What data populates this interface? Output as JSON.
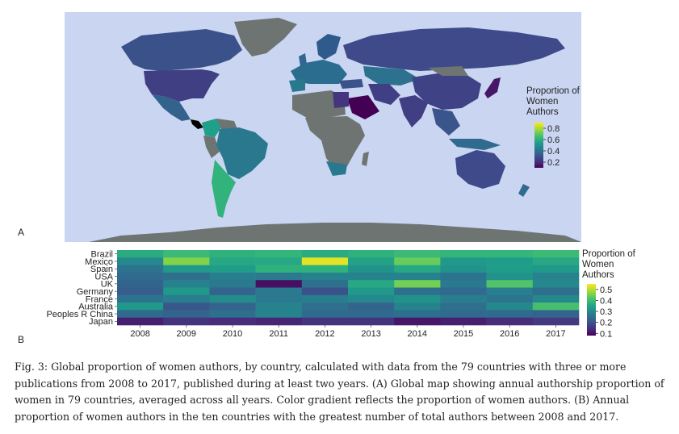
{
  "panel_a": {
    "label": "A",
    "legend": {
      "title_lines": [
        "Proportion of",
        "Women",
        "Authors"
      ],
      "ticks": [
        "0.8",
        "0.6",
        "0.4",
        "0.2"
      ],
      "tick_values": [
        0.8,
        0.6,
        0.4,
        0.2
      ],
      "range": [
        0.1,
        0.9
      ]
    },
    "colors": {
      "ocean": "#c9d5f1",
      "land_no_data": "#6e7472",
      "background": "#ffffff"
    },
    "countries": [
      {
        "name": "USA",
        "value": 0.25
      },
      {
        "name": "Canada",
        "value": 0.3
      },
      {
        "name": "Mexico",
        "value": 0.35
      },
      {
        "name": "Brazil",
        "value": 0.42
      },
      {
        "name": "Argentina",
        "value": 0.62
      },
      {
        "name": "Colombia",
        "value": 0.55
      },
      {
        "name": "Russia",
        "value": 0.28
      },
      {
        "name": "China",
        "value": 0.26
      },
      {
        "name": "India",
        "value": 0.25
      },
      {
        "name": "Australia",
        "value": 0.28
      },
      {
        "name": "Saudi Arabia",
        "value": 0.08
      },
      {
        "name": "Iran",
        "value": 0.25
      },
      {
        "name": "South Africa",
        "value": 0.42
      },
      {
        "name": "Egypt",
        "value": 0.22
      },
      {
        "name": "Japan",
        "value": 0.15
      }
    ]
  },
  "chart_data": {
    "type": "heatmap",
    "label": "B",
    "x": [
      "2008",
      "2009",
      "2010",
      "2011",
      "2012",
      "2013",
      "2014",
      "2015",
      "2016",
      "2017"
    ],
    "y": [
      "Brazil",
      "Mexico",
      "Spain",
      "USA",
      "UK",
      "Germany",
      "France",
      "Australia",
      "Peoples R China",
      "Japan"
    ],
    "values": [
      [
        0.37,
        0.4,
        0.38,
        0.39,
        0.37,
        0.38,
        0.4,
        0.39,
        0.39,
        0.4
      ],
      [
        0.3,
        0.46,
        0.36,
        0.36,
        0.53,
        0.35,
        0.44,
        0.33,
        0.34,
        0.36
      ],
      [
        0.26,
        0.33,
        0.34,
        0.38,
        0.38,
        0.32,
        0.36,
        0.32,
        0.34,
        0.33
      ],
      [
        0.24,
        0.25,
        0.28,
        0.27,
        0.29,
        0.29,
        0.29,
        0.26,
        0.32,
        0.29
      ],
      [
        0.23,
        0.29,
        0.27,
        0.1,
        0.25,
        0.36,
        0.45,
        0.27,
        0.42,
        0.3
      ],
      [
        0.22,
        0.33,
        0.23,
        0.27,
        0.2,
        0.33,
        0.25,
        0.24,
        0.28,
        0.25
      ],
      [
        0.26,
        0.28,
        0.31,
        0.27,
        0.28,
        0.3,
        0.32,
        0.28,
        0.26,
        0.3
      ],
      [
        0.33,
        0.21,
        0.23,
        0.29,
        0.25,
        0.23,
        0.29,
        0.25,
        0.3,
        0.41
      ],
      [
        0.24,
        0.23,
        0.25,
        0.29,
        0.24,
        0.24,
        0.25,
        0.24,
        0.24,
        0.23
      ],
      [
        0.12,
        0.15,
        0.14,
        0.13,
        0.15,
        0.15,
        0.11,
        0.12,
        0.14,
        0.16
      ]
    ],
    "color_range": [
      0.08,
      0.55
    ],
    "legend": {
      "title_lines": [
        "Proportion of",
        "Women",
        "Authors"
      ],
      "ticks": [
        "0.5",
        "0.4",
        "0.3",
        "0.2",
        "0.1"
      ],
      "tick_values": [
        0.5,
        0.4,
        0.3,
        0.2,
        0.1
      ]
    }
  },
  "caption": "Fig. 3: Global proportion of women authors, by country, calculated with data from the 79 countries with three or more publications from 2008 to 2017, published during at least two years. (A) Global map showing annual authorship proportion of women in 79 countries, averaged across all years. Color gradient reflects the proportion of women authors. (B) Annual proportion of women authors in the ten countries with the greatest number of total authors between 2008 and 2017."
}
